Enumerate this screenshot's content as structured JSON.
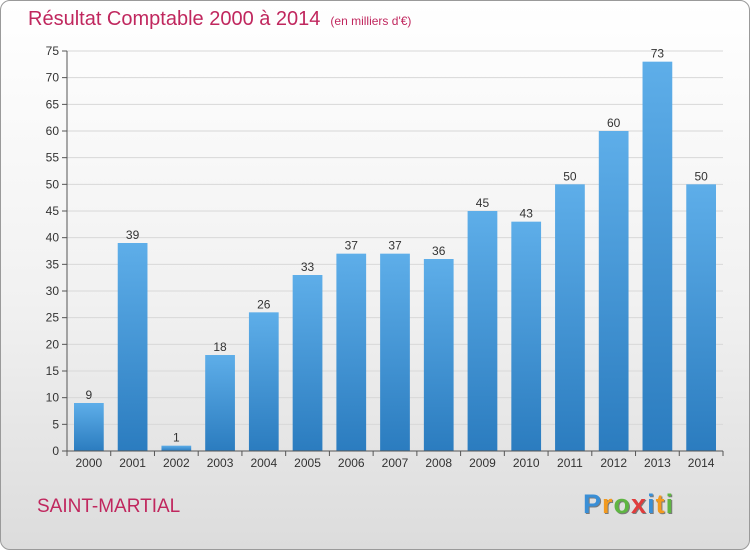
{
  "chart_data": {
    "type": "bar",
    "title": "Résultat Comptable 2000 à 2014",
    "subtitle": "(en milliers d'€)",
    "categories": [
      "2000",
      "2001",
      "2002",
      "2003",
      "2004",
      "2005",
      "2006",
      "2007",
      "2008",
      "2009",
      "2010",
      "2011",
      "2012",
      "2013",
      "2014"
    ],
    "values": [
      9,
      39,
      1,
      18,
      26,
      33,
      37,
      37,
      36,
      45,
      43,
      50,
      60,
      73,
      50
    ],
    "ylim": [
      0,
      75
    ],
    "yticks": [
      0,
      5,
      10,
      15,
      20,
      25,
      30,
      35,
      40,
      45,
      50,
      55,
      60,
      65,
      70,
      75
    ],
    "grid": true,
    "legend": "none",
    "colors": {
      "bar_top": "#5eaee9",
      "bar_bottom": "#2b7cbf",
      "title": "#c0275e"
    }
  },
  "footer": {
    "commune": "SAINT-MARTIAL"
  },
  "logo": {
    "letters": [
      "P",
      "r",
      "o",
      "x",
      "i",
      "t",
      "i"
    ],
    "colors": [
      "#3a8fd6",
      "#f29a1f",
      "#5fb543",
      "#e03c3c",
      "#3a8fd6",
      "#f29a1f",
      "#5fb543"
    ]
  }
}
